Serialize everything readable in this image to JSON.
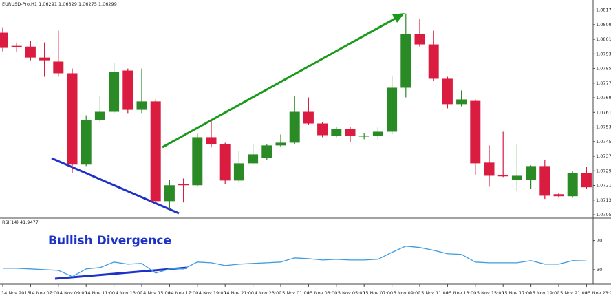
{
  "chart_data": [
    {
      "type": "candlestick",
      "title": "EURUSD-Pro,H1  1.06291 1.06329 1.06275 1.06299",
      "categories": [
        "14 Nov 2016",
        null,
        "14 Nov 07:00",
        null,
        "14 Nov 09:00",
        null,
        "14 Nov 11:00",
        null,
        "14 Nov 13:00",
        null,
        "14 Nov 15:00",
        null,
        "14 Nov 17:00",
        null,
        "14 Nov 19:00",
        null,
        "14 Nov 21:00",
        null,
        "14 Nov 23:00",
        null,
        "15 Nov 01:00",
        null,
        "15 Nov 03:00",
        null,
        "15 Nov 05:00",
        null,
        "15 Nov 07:00",
        null,
        "15 Nov 09:00",
        null,
        "15 Nov 11:00",
        null,
        "15 Nov 13:00",
        null,
        "15 Nov 15:00",
        null,
        "15 Nov 17:00",
        null,
        "15 Nov 19:00",
        null,
        "15 Nov 21:00",
        null,
        "15 Nov 23:00"
      ],
      "ohlc": [
        [
          1.08051,
          1.08081,
          1.07949,
          1.07968
        ],
        [
          1.07979,
          1.07998,
          1.07945,
          1.07972
        ],
        [
          1.07975,
          1.08005,
          1.079,
          1.07915
        ],
        [
          1.07915,
          1.07998,
          1.0781,
          1.079
        ],
        [
          1.07893,
          1.08062,
          1.0781,
          1.07829
        ],
        [
          1.07829,
          1.07855,
          1.07284,
          1.07329
        ],
        [
          1.07329,
          1.07599,
          1.07321,
          1.07573
        ],
        [
          1.07573,
          1.07705,
          1.07562,
          1.07618
        ],
        [
          1.07618,
          1.07885,
          1.07611,
          1.07836
        ],
        [
          1.07844,
          1.07855,
          1.07611,
          1.07629
        ],
        [
          1.07629,
          1.07855,
          1.07611,
          1.07675
        ],
        [
          1.07675,
          1.07686,
          1.07122,
          1.07129
        ],
        [
          1.07129,
          1.07246,
          1.07084,
          1.07216
        ],
        [
          1.07223,
          1.07253,
          1.07122,
          1.07216
        ],
        [
          1.07216,
          1.07498,
          1.07208,
          1.07479
        ],
        [
          1.07479,
          1.07573,
          1.07423,
          1.07441
        ],
        [
          1.07441,
          1.07449,
          1.07223,
          1.07242
        ],
        [
          1.07242,
          1.07404,
          1.07235,
          1.07336
        ],
        [
          1.07336,
          1.07441,
          1.07329,
          1.07385
        ],
        [
          1.07366,
          1.07441,
          1.07355,
          1.07434
        ],
        [
          1.07434,
          1.07494,
          1.07426,
          1.07449
        ],
        [
          1.07449,
          1.07705,
          1.07441,
          1.07618
        ],
        [
          1.07618,
          1.07697,
          1.07547,
          1.07554
        ],
        [
          1.07554,
          1.07562,
          1.07479,
          1.0749
        ],
        [
          1.07487,
          1.07535,
          1.07479,
          1.07524
        ],
        [
          1.07524,
          1.07535,
          1.07453,
          1.07487
        ],
        [
          1.07483,
          1.07502,
          1.07468,
          1.07487
        ],
        [
          1.07487,
          1.07532,
          1.07468,
          1.07509
        ],
        [
          1.07509,
          1.07817,
          1.07494,
          1.0775
        ],
        [
          1.0775,
          1.08156,
          1.07697,
          1.08043
        ],
        [
          1.08043,
          1.08126,
          1.07975,
          1.07987
        ],
        [
          1.07987,
          1.08062,
          1.07787,
          1.07799
        ],
        [
          1.07799,
          1.0781,
          1.07637,
          1.0766
        ],
        [
          1.0766,
          1.07735,
          1.07648,
          1.07686
        ],
        [
          1.07678,
          1.07686,
          1.07272,
          1.07336
        ],
        [
          1.0734,
          1.07434,
          1.07208,
          1.07268
        ],
        [
          1.07272,
          1.07509,
          1.07261,
          1.07265
        ],
        [
          1.07246,
          1.07441,
          1.07186,
          1.07268
        ],
        [
          1.07246,
          1.07325,
          1.07197,
          1.07321
        ],
        [
          1.07321,
          1.07355,
          1.07141,
          1.07159
        ],
        [
          1.07167,
          1.07175,
          1.07148,
          1.07156
        ],
        [
          1.07156,
          1.07291,
          1.07148,
          1.07284
        ],
        [
          1.07284,
          1.07317,
          1.07197,
          1.07205
        ]
      ],
      "up_color": "#2a8a26",
      "down_color": "#d91c40",
      "ylim": [
        1.0704,
        1.0823
      ],
      "yticks": [
        1.08175,
        1.08095,
        1.08015,
        1.07935,
        1.07855,
        1.07775,
        1.07695,
        1.07615,
        1.07535,
        1.07455,
        1.07375,
        1.07295,
        1.07215,
        1.07135,
        1.07055
      ]
    },
    {
      "type": "line",
      "title": "RSI(14) 41.9477",
      "annotation": "Bullish Divergence",
      "values": [
        31.9,
        31.9,
        31.0,
        30.0,
        29.0,
        20.5,
        31.0,
        32.9,
        40.5,
        37.6,
        38.6,
        25.2,
        31.0,
        31.0,
        40.5,
        39.5,
        35.7,
        37.6,
        38.6,
        39.5,
        40.5,
        46.2,
        45.2,
        43.3,
        44.3,
        43.3,
        43.3,
        44.3,
        53.8,
        62.4,
        60.5,
        56.7,
        51.9,
        51.0,
        40.5,
        39.5,
        39.5,
        39.5,
        42.4,
        37.6,
        37.6,
        42.4,
        41.9
      ],
      "color": "#3d9be0",
      "ylim": [
        10,
        100
      ],
      "yticks": [
        30,
        70
      ]
    }
  ]
}
